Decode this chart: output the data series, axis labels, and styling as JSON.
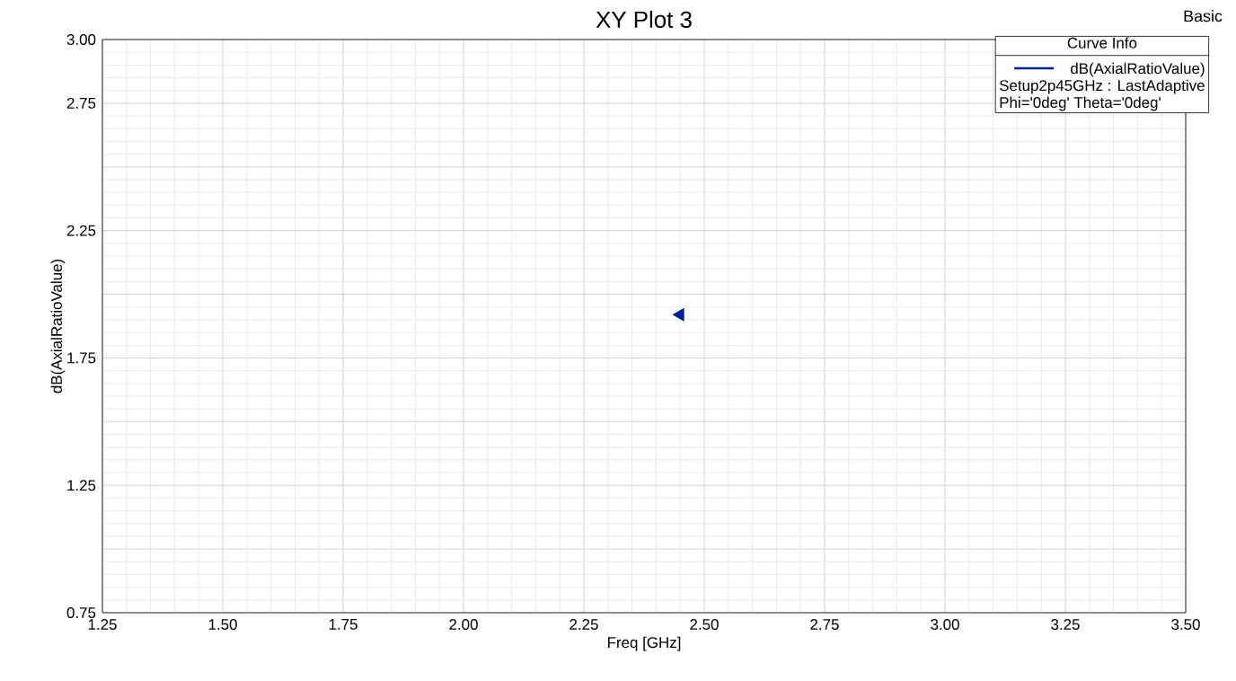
{
  "chart_data": {
    "type": "scatter",
    "title": "XY Plot 3",
    "xlabel": "Freq [GHz]",
    "ylabel": "dB(AxialRatioValue)",
    "legend_title": "Curve Info",
    "annotations": [
      "Basic",
      "Setup2p45GHz : LastAdaptive",
      "Phi='0deg' Theta='0deg'"
    ],
    "series": [
      {
        "name": "dB(AxialRatioValue)",
        "color": "#0020a0",
        "x": [
          2.45
        ],
        "values": [
          1.92
        ]
      }
    ],
    "xlim": [
      1.25,
      3.5
    ],
    "ylim": [
      0.75,
      3.0
    ],
    "xticks": [
      {
        "value": 1.25,
        "label": "1.25"
      },
      {
        "value": 1.5,
        "label": "1.50"
      },
      {
        "value": 1.75,
        "label": "1.75"
      },
      {
        "value": 2.0,
        "label": "2.00"
      },
      {
        "value": 2.25,
        "label": "2.25"
      },
      {
        "value": 2.5,
        "label": "2.50"
      },
      {
        "value": 2.75,
        "label": "2.75"
      },
      {
        "value": 3.0,
        "label": "3.00"
      },
      {
        "value": 3.25,
        "label": "3.25"
      },
      {
        "value": 3.5,
        "label": "3.50"
      }
    ],
    "yticks": [
      {
        "value": 0.75,
        "label": "0.75"
      },
      {
        "value": 1.0,
        "label": null
      },
      {
        "value": 1.25,
        "label": "1.25"
      },
      {
        "value": 1.5,
        "label": null
      },
      {
        "value": 1.75,
        "label": "1.75"
      },
      {
        "value": 2.0,
        "label": null
      },
      {
        "value": 2.25,
        "label": "2.25"
      },
      {
        "value": 2.5,
        "label": null
      },
      {
        "value": 2.75,
        "label": "2.75"
      },
      {
        "value": 3.0,
        "label": "3.00"
      }
    ],
    "grid": true,
    "legend": "top right",
    "marker": "triangle"
  }
}
